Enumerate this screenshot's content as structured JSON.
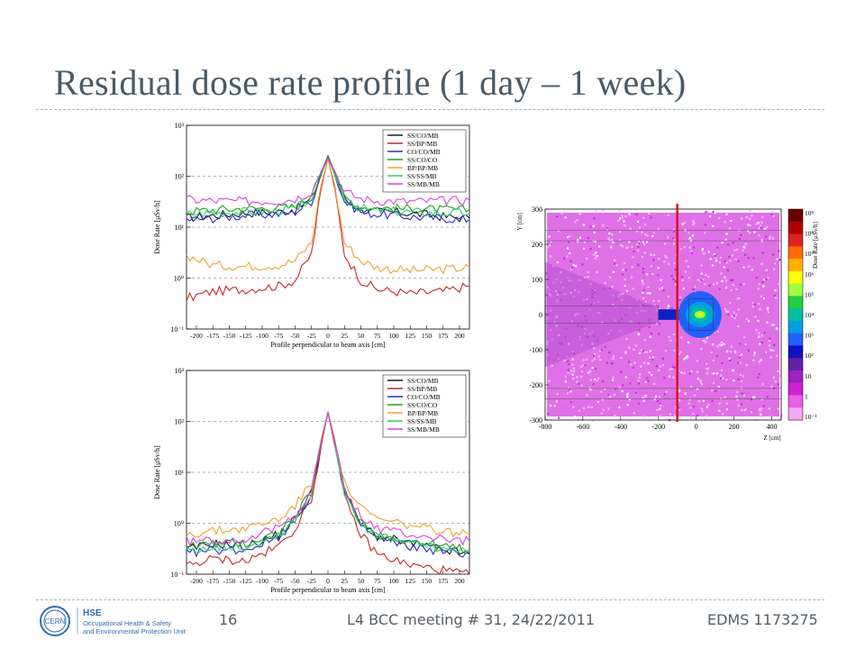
{
  "slide": {
    "title": "Residual dose rate profile (1 day – 1 week)",
    "page_number": "16",
    "meeting": "L4 BCC meeting # 31, 24/22/2011",
    "edms": "EDMS 1173275",
    "logo": {
      "org": "CERN",
      "unit_short": "HSE",
      "unit_line1": "Occupational Health & Safety",
      "unit_line2": "and Environmental Protection Unit"
    }
  },
  "chart_data": [
    {
      "type": "line",
      "ylabel": "Dose Rate [μSv/h]",
      "xlabel": "Profile perpendicular to beam axis [cm]",
      "yscale": "log",
      "ylim": [
        0.1,
        1000
      ],
      "xlim": [
        -215,
        215
      ],
      "xticks": [
        -200,
        -175,
        -150,
        -125,
        -100,
        -75,
        -50,
        -25,
        0,
        25,
        50,
        75,
        100,
        125,
        150,
        175,
        200
      ],
      "yticks": [
        "10⁻¹",
        "10⁰",
        "10¹",
        "10²",
        "10³"
      ],
      "grid": "dashed horizontal at decades",
      "legend_position": "top-right",
      "x": [
        -215,
        -175,
        -125,
        -75,
        -50,
        -25,
        -10,
        0,
        10,
        25,
        50,
        75,
        125,
        175,
        215
      ],
      "series": [
        {
          "name": "SS/CO/MB",
          "color": "#1a1a2e",
          "values": [
            15,
            17,
            19,
            20,
            22,
            35,
            120,
            250,
            120,
            35,
            22,
            20,
            19,
            16,
            15
          ]
        },
        {
          "name": "SS/BP/MB",
          "color": "#c82828",
          "values": [
            0.4,
            0.55,
            0.6,
            0.7,
            0.9,
            3,
            60,
            220,
            60,
            3,
            0.9,
            0.6,
            0.5,
            0.55,
            0.7
          ]
        },
        {
          "name": "CO/CO/MB",
          "color": "#2b2bd0",
          "values": [
            14,
            15,
            17,
            18,
            20,
            32,
            110,
            230,
            110,
            32,
            20,
            18,
            16,
            15,
            14
          ]
        },
        {
          "name": "SS/CO/CO",
          "color": "#1f9e1f",
          "values": [
            20,
            22,
            23,
            24,
            25,
            38,
            120,
            240,
            120,
            38,
            25,
            24,
            23,
            22,
            22
          ]
        },
        {
          "name": "BP/BP/MB",
          "color": "#f0a030",
          "values": [
            2.8,
            1.8,
            1.7,
            1.8,
            2.2,
            5,
            70,
            210,
            70,
            5,
            2.2,
            1.6,
            1.4,
            1.5,
            1.6
          ]
        },
        {
          "name": "SS/SS/MB",
          "color": "#30d070",
          "values": [
            18,
            19,
            20,
            21,
            23,
            36,
            115,
            230,
            115,
            36,
            23,
            21,
            20,
            19,
            19
          ]
        },
        {
          "name": "SS/MB/MB",
          "color": "#e040e0",
          "values": [
            35,
            33,
            32,
            33,
            36,
            50,
            130,
            220,
            130,
            50,
            36,
            33,
            32,
            33,
            34
          ]
        }
      ]
    },
    {
      "type": "line",
      "ylabel": "Dose Rate [μSv/h]",
      "xlabel": "Profile perpendicular to beam axis [cm]",
      "yscale": "log",
      "ylim": [
        0.1,
        1000
      ],
      "xlim": [
        -215,
        215
      ],
      "xticks": [
        -200,
        -175,
        -150,
        -125,
        -100,
        -75,
        -50,
        -25,
        0,
        25,
        50,
        75,
        100,
        125,
        150,
        175,
        200
      ],
      "yticks": [
        "10⁻¹",
        "10⁰",
        "10¹",
        "10²",
        "10³"
      ],
      "grid": "dashed horizontal at decades",
      "legend_position": "top-right",
      "x": [
        -215,
        -175,
        -125,
        -75,
        -50,
        -25,
        -10,
        0,
        10,
        25,
        50,
        75,
        125,
        175,
        215
      ],
      "series": [
        {
          "name": "SS/CO/MB",
          "color": "#1a1a2e",
          "values": [
            0.3,
            0.4,
            0.35,
            0.6,
            1.2,
            4,
            40,
            150,
            40,
            4,
            1.0,
            0.55,
            0.4,
            0.3,
            0.25
          ]
        },
        {
          "name": "SS/BP/MB",
          "color": "#c82828",
          "values": [
            0.15,
            0.2,
            0.18,
            0.35,
            0.8,
            3,
            35,
            150,
            35,
            3,
            0.6,
            0.25,
            0.15,
            0.12,
            0.1
          ]
        },
        {
          "name": "CO/CO/MB",
          "color": "#2b2bd0",
          "values": [
            0.25,
            0.3,
            0.3,
            0.55,
            1.1,
            3.8,
            38,
            150,
            38,
            3.8,
            0.9,
            0.5,
            0.35,
            0.28,
            0.25
          ]
        },
        {
          "name": "SS/CO/CO",
          "color": "#1f9e1f",
          "values": [
            0.35,
            0.4,
            0.4,
            0.65,
            1.3,
            4.2,
            42,
            155,
            42,
            4.2,
            1.1,
            0.6,
            0.45,
            0.35,
            0.3
          ]
        },
        {
          "name": "BP/BP/MB",
          "color": "#f0a030",
          "values": [
            0.6,
            0.7,
            0.8,
            1.2,
            2.2,
            6,
            48,
            150,
            48,
            6,
            2.0,
            1.2,
            0.9,
            0.7,
            0.6
          ]
        },
        {
          "name": "SS/SS/MB",
          "color": "#30d070",
          "values": [
            0.3,
            0.35,
            0.35,
            0.6,
            1.2,
            4,
            40,
            150,
            40,
            4,
            1.0,
            0.55,
            0.4,
            0.32,
            0.28
          ]
        },
        {
          "name": "SS/MB/MB",
          "color": "#e040e0",
          "values": [
            0.45,
            0.45,
            0.5,
            0.8,
            1.5,
            4.5,
            42,
            150,
            42,
            4.5,
            1.3,
            0.8,
            0.6,
            0.5,
            0.45
          ]
        }
      ]
    },
    {
      "type": "heatmap",
      "xlabel": "Z [cm]",
      "ylabel": "Y [cm]",
      "xlim": [
        -800,
        450
      ],
      "ylim": [
        -300,
        300
      ],
      "xticks": [
        -800,
        -600,
        -400,
        -200,
        0,
        200,
        400
      ],
      "yticks": [
        300,
        200,
        100,
        0,
        -100,
        -200,
        -300
      ],
      "colorbar_label": "Dose Rate [μSv/h]",
      "colorbar_ticks": [
        "10⁹",
        "10⁸",
        "10⁷",
        "10⁶",
        "10⁵",
        "10⁴",
        "10³",
        "10²",
        "10",
        "1",
        "10⁻¹"
      ],
      "colorbar_colors": [
        "#6b0000",
        "#b00000",
        "#e02020",
        "#ff6a00",
        "#ffb000",
        "#ffff00",
        "#a0ff40",
        "#20d040",
        "#00c0a0",
        "#00a0e0",
        "#2060ff",
        "#1010c0",
        "#6020a0",
        "#a020c0",
        "#d020d0",
        "#e860e8",
        "#f2a8f2"
      ],
      "profile_line_z": -100,
      "profile_line_color": "#e01010"
    }
  ]
}
